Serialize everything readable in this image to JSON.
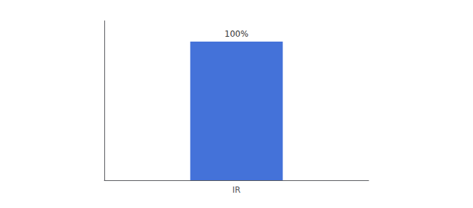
{
  "chart_data": {
    "type": "bar",
    "categories": [
      "IR"
    ],
    "values": [
      100
    ],
    "value_labels": [
      "100%"
    ],
    "data_labels": true,
    "color": "#4472d9",
    "ylim": [
      0,
      115
    ],
    "yticks": [],
    "tick_labels": "x",
    "grid": false
  }
}
